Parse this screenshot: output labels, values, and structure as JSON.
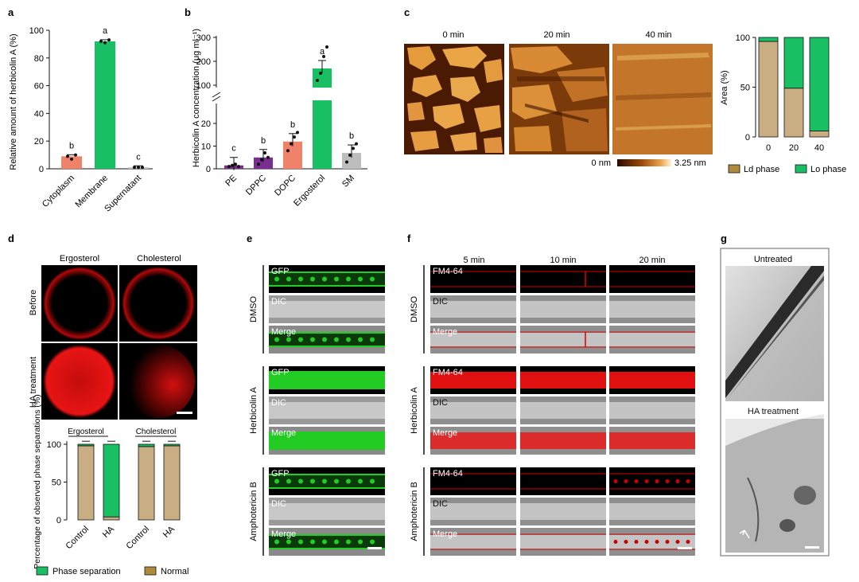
{
  "colors": {
    "salmon": "#f0826a",
    "green": "#19c063",
    "gray": "#bdbdbd",
    "purple": "#7a2f8f",
    "tan": "#c9ae84",
    "dark_tan": "#b08a3c",
    "red_signal": "#e01010",
    "gfp": "#22cc22"
  },
  "panel_a": {
    "label": "a",
    "chart_data": {
      "type": "bar",
      "categories": [
        "Cytoplasm",
        "Membrane",
        "Supernatant"
      ],
      "values": [
        9,
        92,
        1
      ],
      "letters": [
        "b",
        "a",
        "c"
      ],
      "ylabel": "Relative amount of herbicolin A (%)",
      "ylim": [
        0,
        100
      ],
      "yticks": [
        "0",
        "20",
        "40",
        "60",
        "80",
        "100"
      ]
    }
  },
  "panel_b": {
    "label": "b",
    "chart_data": {
      "type": "bar",
      "categories": [
        "PE",
        "DPPC",
        "DOPC",
        "Ergosterol",
        "SM"
      ],
      "values": [
        1.5,
        5,
        12,
        170,
        7
      ],
      "letters": [
        "c",
        "b",
        "b",
        "a",
        "b"
      ],
      "ylabel": "Herbicolin A concentration (μg ml⁻¹)",
      "yticks_lower": [
        "0",
        "10",
        "20"
      ],
      "yticks_upper": [
        "100",
        "200",
        "300"
      ]
    }
  },
  "panel_c": {
    "label": "c",
    "times": [
      "0 min",
      "20 min",
      "40 min"
    ],
    "scale_min": "0 nm",
    "scale_max": "3.25 nm",
    "chart_data": {
      "type": "bar",
      "stacked": true,
      "categories": [
        "0",
        "20",
        "40"
      ],
      "series": [
        {
          "name": "Ld phase",
          "values": [
            96,
            49,
            6
          ]
        },
        {
          "name": "Lo phase",
          "values": [
            4,
            51,
            94
          ]
        }
      ],
      "ylabel": "Area (%)",
      "yticks": [
        "0",
        "50",
        "100"
      ]
    },
    "legend": [
      "Ld phase",
      "Lo phase"
    ]
  },
  "panel_d": {
    "label": "d",
    "cols": [
      "Ergosterol",
      "Cholesterol"
    ],
    "rows": [
      "Before",
      "HA treatment"
    ],
    "group_labels": [
      "Ergosterol",
      "Cholesterol"
    ],
    "chart_data": {
      "type": "bar",
      "stacked": true,
      "categories": [
        "Control",
        "HA",
        "Control",
        "HA"
      ],
      "series": [
        {
          "name": "Normal",
          "values": [
            98,
            4,
            97,
            98
          ]
        },
        {
          "name": "Phase separation",
          "values": [
            2,
            96,
            3,
            2
          ]
        }
      ],
      "ylabel": "Percentage of observed phase separations (%)",
      "yticks": [
        "0",
        "50",
        "100"
      ]
    },
    "legend": [
      "Phase separation",
      "Normal"
    ]
  },
  "panel_e": {
    "label": "e",
    "groups": [
      "DMSO",
      "Herbicolin A",
      "Amphotericin B"
    ],
    "channels": [
      "GFP",
      "DIC",
      "Merge"
    ]
  },
  "panel_f": {
    "label": "f",
    "times": [
      "5 min",
      "10 min",
      "20 min"
    ],
    "groups": [
      "DMSO",
      "Herbicolin A",
      "Amphotericin B"
    ],
    "channels": [
      "FM4-64",
      "DIC",
      "Merge"
    ]
  },
  "panel_g": {
    "label": "g",
    "top": "Untreated",
    "bottom": "HA treatment"
  }
}
